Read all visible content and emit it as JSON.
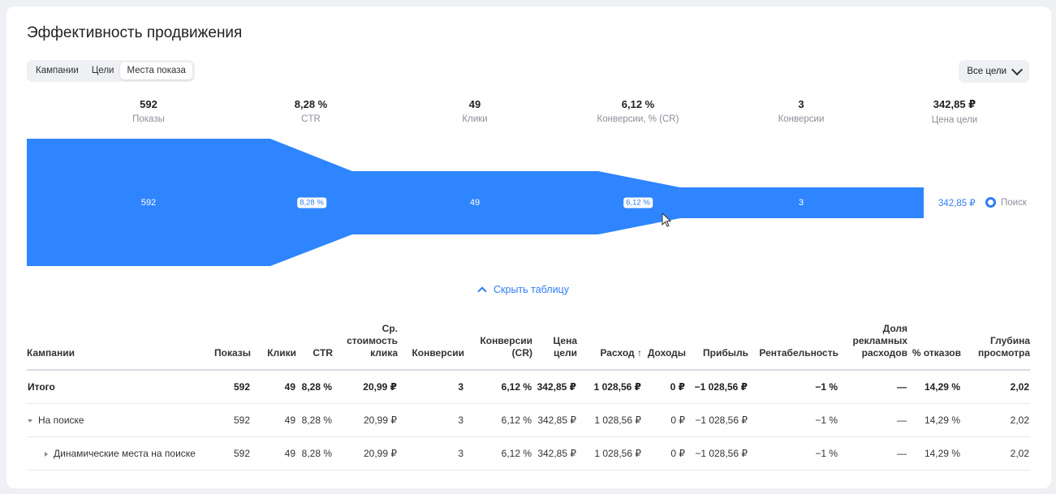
{
  "title": "Эффективность продвижения",
  "tabs": [
    "Кампании",
    "Цели",
    "Места показа"
  ],
  "goals_button": "Все цели",
  "metrics": [
    {
      "value": "592",
      "label": "Показы"
    },
    {
      "value": "8,28 %",
      "label": "CTR"
    },
    {
      "value": "49",
      "label": "Клики"
    },
    {
      "value": "6,12 %",
      "label": "Конверсии, % (CR)"
    },
    {
      "value": "3",
      "label": "Конверсии"
    },
    {
      "value": "342,85 ₽",
      "label": "Цена цели"
    }
  ],
  "funnel": {
    "shows": "592",
    "ctr": "8,28 %",
    "clicks": "49",
    "cr": "6,12 %",
    "conversions": "3",
    "goal_price": "342,85 ₽",
    "legend": "Поиск",
    "color": "#2f85ff"
  },
  "hide_table": "Скрыть таблицу",
  "table": {
    "headers": [
      "Кампании",
      "Показы",
      "Клики",
      "CTR",
      "Ср. стоимость клика",
      "Конверсии",
      "Конверсии (CR)",
      "Цена цели",
      "Расход ↑",
      "Доходы",
      "Прибыль",
      "Рентабельность",
      "Доля рекламных расходов",
      "% отказов",
      "Глубина просмотра"
    ],
    "rows": [
      {
        "name": "Итого",
        "cells": [
          "592",
          "49",
          "8,28 %",
          "20,99 ₽",
          "3",
          "6,12 %",
          "342,85 ₽",
          "1 028,56 ₽",
          "0 ₽",
          "−1 028,56 ₽",
          "−1 %",
          "—",
          "14,29 %",
          "2,02"
        ]
      },
      {
        "name": "На поиске",
        "cells": [
          "592",
          "49",
          "8,28 %",
          "20,99 ₽",
          "3",
          "6,12 %",
          "342,85 ₽",
          "1 028,56 ₽",
          "0 ₽",
          "−1 028,56 ₽",
          "−1 %",
          "—",
          "14,29 %",
          "2,02"
        ]
      },
      {
        "name": "Динамические места на поиске",
        "cells": [
          "592",
          "49",
          "8,28 %",
          "20,99 ₽",
          "3",
          "6,12 %",
          "342,85 ₽",
          "1 028,56 ₽",
          "0 ₽",
          "−1 028,56 ₽",
          "−1 %",
          "—",
          "14,29 %",
          "2,02"
        ]
      }
    ]
  }
}
